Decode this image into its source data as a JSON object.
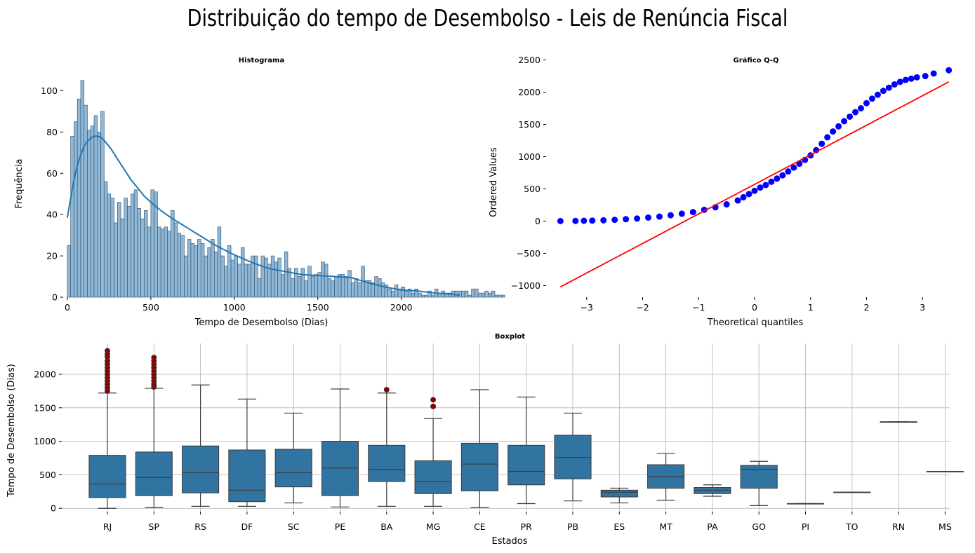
{
  "figure": {
    "title": "Distribuição do tempo de Desembolso - Leis de Renúncia Fiscal",
    "colors": {
      "bar": "#8fb8d8",
      "bar_edge": "#2f4a5f",
      "kde": "#1f77b4",
      "qq_point": "#0000ff",
      "qq_line": "#ff0000",
      "box": "#3274a1",
      "outlier": "#8b0000",
      "grid": "#b0b0b0"
    }
  },
  "chart_data": [
    {
      "type": "bar",
      "subtype": "histogram",
      "title": "Histograma",
      "xlabel": "Tempo de Desembolso (Dias)",
      "ylabel": "Frequência",
      "xlim": [
        -25,
        2350
      ],
      "ylim": [
        0,
        110
      ],
      "x_ticks": [
        0,
        500,
        1000,
        1500,
        2000
      ],
      "y_ticks": [
        0,
        20,
        40,
        60,
        80,
        100
      ],
      "bin_width": 20,
      "bin_start": 0,
      "values": [
        25,
        78,
        85,
        96,
        105,
        93,
        81,
        83,
        88,
        80,
        90,
        56,
        50,
        48,
        36,
        46,
        38,
        48,
        44,
        50,
        52,
        43,
        38,
        42,
        34,
        52,
        51,
        34,
        33,
        34,
        32,
        42,
        36,
        31,
        30,
        20,
        28,
        26,
        25,
        28,
        26,
        20,
        24,
        28,
        22,
        34,
        20,
        15,
        25,
        18,
        20,
        16,
        24,
        16,
        16,
        20,
        20,
        9,
        20,
        19,
        16,
        20,
        17,
        19,
        11,
        22,
        14,
        9,
        14,
        10,
        14,
        8,
        15,
        10,
        11,
        12,
        17,
        16,
        9,
        8,
        10,
        11,
        11,
        10,
        13,
        7,
        9,
        7,
        15,
        8,
        8,
        7,
        10,
        9,
        7,
        6,
        4,
        3,
        6,
        4,
        5,
        3,
        4,
        2,
        4,
        2,
        1,
        1,
        3,
        1,
        4,
        2,
        3,
        2,
        2,
        3,
        3,
        3,
        3,
        3,
        1,
        4,
        4,
        2,
        2,
        3,
        2,
        3,
        1,
        1,
        1
      ],
      "kde": {
        "x": [
          0,
          20,
          40,
          60,
          80,
          100,
          120,
          140,
          160,
          180,
          200,
          220,
          240,
          260,
          280,
          300,
          340,
          380,
          420,
          460,
          500,
          560,
          620,
          680,
          740,
          800,
          900,
          1000,
          1100,
          1200,
          1300,
          1400,
          1500,
          1600,
          1700,
          1800,
          1900,
          2000,
          2100,
          2200,
          2300,
          2350
        ],
        "y": [
          38.5,
          48,
          57,
          64,
          69,
          73,
          75.5,
          77,
          78,
          78,
          77.5,
          76,
          74,
          72,
          69.5,
          67,
          62,
          57,
          53,
          49,
          46,
          42,
          38.5,
          35.5,
          32.5,
          29.5,
          24.5,
          20.5,
          17,
          14,
          12.5,
          11,
          10.5,
          10,
          9.5,
          7,
          5,
          3.5,
          3,
          2,
          1.5,
          1
        ]
      }
    },
    {
      "type": "scatter",
      "title": "Gráfico Q-Q",
      "xlabel": "Theoretical quantiles",
      "ylabel": "Ordered Values",
      "xlim": [
        -3.7,
        3.75
      ],
      "ylim": [
        -1180,
        2560
      ],
      "x_ticks": [
        -3,
        -2,
        -1,
        0,
        1,
        2,
        3
      ],
      "y_ticks": [
        -1000,
        -500,
        0,
        500,
        1000,
        1500,
        2000,
        2500
      ],
      "fit_line": {
        "x": [
          -3.47,
          3.47
        ],
        "y": [
          -1020,
          2160
        ]
      },
      "points": {
        "x": [
          -3.47,
          -3.2,
          -3.05,
          -2.9,
          -2.7,
          -2.5,
          -2.3,
          -2.1,
          -1.9,
          -1.7,
          -1.5,
          -1.3,
          -1.1,
          -0.9,
          -0.7,
          -0.5,
          -0.3,
          -0.2,
          -0.1,
          0,
          0.1,
          0.2,
          0.3,
          0.4,
          0.5,
          0.6,
          0.7,
          0.8,
          0.9,
          1.0,
          1.1,
          1.2,
          1.3,
          1.4,
          1.5,
          1.6,
          1.7,
          1.8,
          1.9,
          2.0,
          2.1,
          2.2,
          2.3,
          2.4,
          2.5,
          2.6,
          2.7,
          2.8,
          2.9,
          3.05,
          3.2,
          3.47
        ],
        "y": [
          1,
          3,
          5,
          8,
          12,
          20,
          30,
          40,
          55,
          70,
          90,
          115,
          140,
          175,
          215,
          260,
          320,
          370,
          420,
          470,
          520,
          560,
          610,
          660,
          710,
          770,
          830,
          890,
          950,
          1020,
          1100,
          1200,
          1300,
          1390,
          1470,
          1550,
          1620,
          1690,
          1750,
          1830,
          1900,
          1960,
          2020,
          2070,
          2120,
          2160,
          2190,
          2210,
          2230,
          2250,
          2290,
          2340
        ]
      }
    },
    {
      "type": "box",
      "title": "Boxplot",
      "xlabel": "Estados",
      "ylabel": "Tempo de Desembolso (Dias)",
      "ylim": [
        -50,
        2460
      ],
      "y_ticks": [
        0,
        500,
        1000,
        1500,
        2000
      ],
      "categories": [
        "RJ",
        "SP",
        "RS",
        "DF",
        "SC",
        "PE",
        "BA",
        "MG",
        "CE",
        "PR",
        "PB",
        "ES",
        "MT",
        "PA",
        "GO",
        "PI",
        "TO",
        "RN",
        "MS"
      ],
      "boxes": [
        {
          "whislo": 0,
          "q1": 160,
          "med": 360,
          "q3": 790,
          "whishi": 1720,
          "fliers": [
            1750,
            1800,
            1850,
            1900,
            1950,
            2000,
            2050,
            2100,
            2150,
            2200,
            2260,
            2300,
            2350
          ]
        },
        {
          "whislo": 10,
          "q1": 190,
          "med": 460,
          "q3": 840,
          "whishi": 1790,
          "fliers": [
            1810,
            1850,
            1900,
            1950,
            2000,
            2050,
            2100,
            2150,
            2200,
            2250
          ]
        },
        {
          "whislo": 30,
          "q1": 230,
          "med": 530,
          "q3": 930,
          "whishi": 1840,
          "fliers": []
        },
        {
          "whislo": 30,
          "q1": 100,
          "med": 270,
          "q3": 870,
          "whishi": 1630,
          "fliers": []
        },
        {
          "whislo": 80,
          "q1": 320,
          "med": 530,
          "q3": 880,
          "whishi": 1420,
          "fliers": []
        },
        {
          "whislo": 20,
          "q1": 190,
          "med": 600,
          "q3": 1000,
          "whishi": 1780,
          "fliers": []
        },
        {
          "whislo": 30,
          "q1": 400,
          "med": 580,
          "q3": 940,
          "whishi": 1720,
          "fliers": [
            1770
          ]
        },
        {
          "whislo": 30,
          "q1": 220,
          "med": 400,
          "q3": 710,
          "whishi": 1340,
          "fliers": [
            1520,
            1620
          ]
        },
        {
          "whislo": 10,
          "q1": 260,
          "med": 660,
          "q3": 970,
          "whishi": 1770,
          "fliers": []
        },
        {
          "whislo": 70,
          "q1": 350,
          "med": 550,
          "q3": 940,
          "whishi": 1660,
          "fliers": []
        },
        {
          "whislo": 110,
          "q1": 440,
          "med": 760,
          "q3": 1090,
          "whishi": 1420,
          "fliers": []
        },
        {
          "whislo": 80,
          "q1": 170,
          "med": 240,
          "q3": 270,
          "whishi": 300,
          "fliers": []
        },
        {
          "whislo": 120,
          "q1": 300,
          "med": 470,
          "q3": 650,
          "whishi": 820,
          "fliers": []
        },
        {
          "whislo": 180,
          "q1": 220,
          "med": 270,
          "q3": 310,
          "whishi": 350,
          "fliers": []
        },
        {
          "whislo": 40,
          "q1": 300,
          "med": 580,
          "q3": 640,
          "whishi": 700,
          "fliers": []
        },
        {
          "whislo": 70,
          "q1": 70,
          "med": 70,
          "q3": 70,
          "whishi": 70,
          "fliers": []
        },
        {
          "whislo": 240,
          "q1": 240,
          "med": 240,
          "q3": 240,
          "whishi": 240,
          "fliers": []
        },
        {
          "whislo": 1290,
          "q1": 1290,
          "med": 1290,
          "q3": 1290,
          "whishi": 1290,
          "fliers": []
        },
        {
          "whislo": 550,
          "q1": 550,
          "med": 550,
          "q3": 550,
          "whishi": 550,
          "fliers": []
        }
      ]
    }
  ]
}
